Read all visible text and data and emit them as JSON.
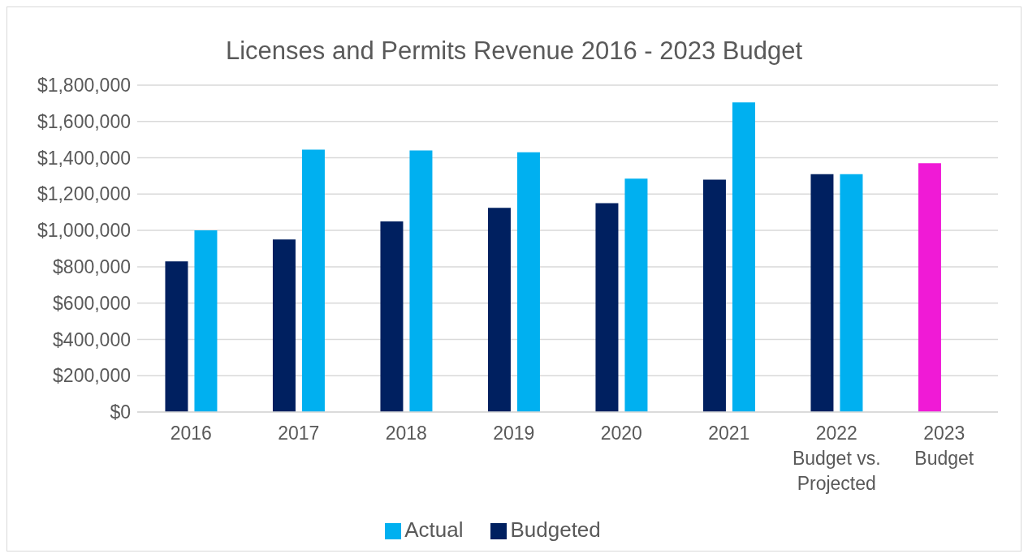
{
  "chart_data": {
    "type": "bar",
    "title": "Licenses and Permits Revenue 2016 - 2023 Budget",
    "categories": [
      "2016",
      "2017",
      "2018",
      "2019",
      "2020",
      "2021",
      "2022\nBudget vs.\nProjected",
      "2023\nBudget"
    ],
    "series": [
      {
        "name": "Budgeted",
        "color": "#002060",
        "colors": [
          "#002060",
          "#002060",
          "#002060",
          "#002060",
          "#002060",
          "#002060",
          "#002060",
          "#f01ad6"
        ],
        "values": [
          830000,
          950000,
          1050000,
          1125000,
          1150000,
          1280000,
          1310000,
          1370000
        ]
      },
      {
        "name": "Actual",
        "color": "#00b0f0",
        "values": [
          1000000,
          1445000,
          1440000,
          1430000,
          1285000,
          1705000,
          1310000,
          null
        ]
      }
    ],
    "ylim": [
      0,
      1800000
    ],
    "yticks": [
      {
        "value": 0,
        "label": "$0"
      },
      {
        "value": 200000,
        "label": "$200,000"
      },
      {
        "value": 400000,
        "label": "$400,000"
      },
      {
        "value": 600000,
        "label": "$600,000"
      },
      {
        "value": 800000,
        "label": "$800,000"
      },
      {
        "value": 1000000,
        "label": "$1,000,000"
      },
      {
        "value": 1200000,
        "label": "$1,200,000"
      },
      {
        "value": 1400000,
        "label": "$1,400,000"
      },
      {
        "value": 1600000,
        "label": "$1,600,000"
      },
      {
        "value": 1800000,
        "label": "$1,800,000"
      }
    ],
    "grid": "y",
    "legend": "bottom"
  }
}
